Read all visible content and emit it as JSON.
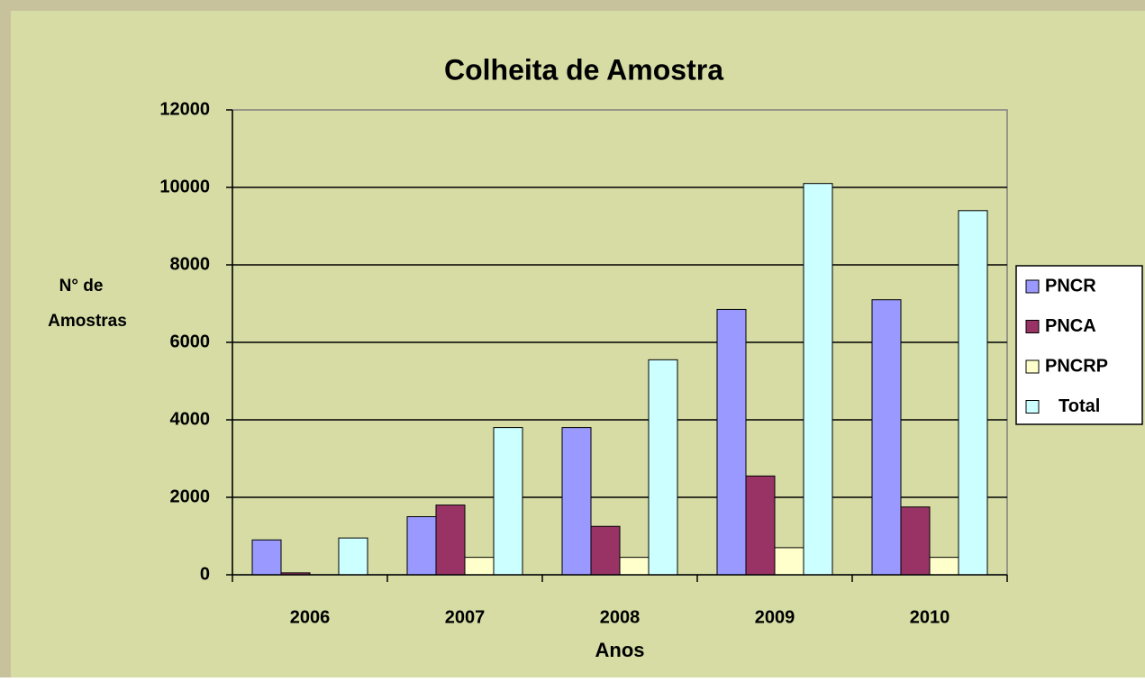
{
  "chart_data": {
    "type": "bar",
    "title": "Colheita de Amostra",
    "xlabel": "Anos",
    "ylabel": [
      "N° de",
      "Amostras"
    ],
    "categories": [
      "2006",
      "2007",
      "2008",
      "2009",
      "2010"
    ],
    "series": [
      {
        "name": "PNCR",
        "color": "#9999ff",
        "values": [
          900,
          1500,
          3800,
          6850,
          7100
        ]
      },
      {
        "name": "PNCA",
        "color": "#993366",
        "values": [
          50,
          1800,
          1250,
          2550,
          1750
        ]
      },
      {
        "name": "PNCRP",
        "color": "#ffffcc",
        "values": [
          0,
          450,
          450,
          700,
          450
        ]
      },
      {
        "name": "Total",
        "color": "#ccffff",
        "values": [
          950,
          3800,
          5550,
          10100,
          9400
        ]
      }
    ],
    "ylim": [
      0,
      12000
    ],
    "yticks": [
      0,
      2000,
      4000,
      6000,
      8000,
      10000,
      12000
    ],
    "grid": true,
    "legend": "right"
  }
}
